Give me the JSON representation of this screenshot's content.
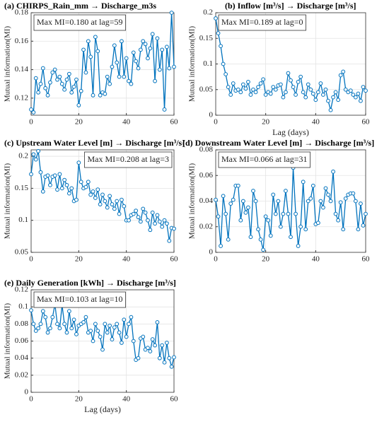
{
  "chart_data": [
    {
      "type": "line",
      "title": "(a) CHIRPS_Rain_mm → Discharge_m3s",
      "ylabel": "Mutual information(MI)",
      "annotation": "Max MI=0.180 at lag=59",
      "annotation_loc": "upper left",
      "x": [
        0,
        1,
        2,
        3,
        4,
        5,
        6,
        7,
        8,
        9,
        10,
        11,
        12,
        13,
        14,
        15,
        16,
        17,
        18,
        19,
        20,
        21,
        22,
        23,
        24,
        25,
        26,
        27,
        28,
        29,
        30,
        31,
        32,
        33,
        34,
        35,
        36,
        37,
        38,
        39,
        40,
        41,
        42,
        43,
        44,
        45,
        46,
        47,
        48,
        49,
        50,
        51,
        52,
        53,
        54,
        55,
        56,
        57,
        58,
        59,
        60
      ],
      "series": [
        {
          "color": "#0072bd",
          "values": [
            0.112,
            0.11,
            0.134,
            0.124,
            0.13,
            0.141,
            0.127,
            0.122,
            0.131,
            0.138,
            0.14,
            0.133,
            0.135,
            0.13,
            0.126,
            0.133,
            0.137,
            0.124,
            0.128,
            0.133,
            0.115,
            0.125,
            0.154,
            0.138,
            0.16,
            0.149,
            0.122,
            0.163,
            0.153,
            0.122,
            0.124,
            0.123,
            0.135,
            0.13,
            0.142,
            0.157,
            0.145,
            0.135,
            0.16,
            0.135,
            0.148,
            0.132,
            0.13,
            0.152,
            0.146,
            0.141,
            0.154,
            0.16,
            0.158,
            0.148,
            0.155,
            0.165,
            0.132,
            0.162,
            0.14,
            0.154,
            0.112,
            0.156,
            0.141,
            0.18,
            0.142
          ]
        }
      ],
      "xlim": [
        0,
        60
      ],
      "xticks": [
        0,
        20,
        40,
        60
      ],
      "ylim": [
        0.108,
        0.18
      ],
      "yticks": [
        0.12,
        0.14,
        0.16,
        0.18
      ],
      "grid": true
    },
    {
      "type": "line",
      "title": "(b) Inflow [m³/s] → Discharge [m³/s]",
      "xlabel": "Lag (days)",
      "ylabel": "Mutual information(MI)",
      "annotation": "Max MI=0.189 at lag=0",
      "annotation_loc": "upper left",
      "x": [
        0,
        1,
        2,
        3,
        4,
        5,
        6,
        7,
        8,
        9,
        10,
        11,
        12,
        13,
        14,
        15,
        16,
        17,
        18,
        19,
        20,
        21,
        22,
        23,
        24,
        25,
        26,
        27,
        28,
        29,
        30,
        31,
        32,
        33,
        34,
        35,
        36,
        37,
        38,
        39,
        40,
        41,
        42,
        43,
        44,
        45,
        46,
        47,
        48,
        49,
        50,
        51,
        52,
        53,
        54,
        55,
        56,
        57,
        58,
        59,
        60
      ],
      "series": [
        {
          "color": "#0072bd",
          "values": [
            0.189,
            0.16,
            0.135,
            0.1,
            0.08,
            0.055,
            0.04,
            0.062,
            0.048,
            0.05,
            0.045,
            0.06,
            0.052,
            0.065,
            0.04,
            0.05,
            0.045,
            0.055,
            0.062,
            0.07,
            0.04,
            0.045,
            0.042,
            0.055,
            0.05,
            0.058,
            0.06,
            0.035,
            0.045,
            0.082,
            0.068,
            0.055,
            0.04,
            0.065,
            0.075,
            0.045,
            0.035,
            0.06,
            0.05,
            0.042,
            0.03,
            0.045,
            0.062,
            0.04,
            0.05,
            0.028,
            0.01,
            0.035,
            0.045,
            0.03,
            0.078,
            0.085,
            0.05,
            0.045,
            0.048,
            0.04,
            0.035,
            0.042,
            0.028,
            0.055,
            0.048
          ]
        }
      ],
      "xlim": [
        0,
        60
      ],
      "xticks": [
        0,
        20,
        40,
        60
      ],
      "ylim": [
        0,
        0.2
      ],
      "yticks": [
        0,
        0.05,
        0.1,
        0.15,
        0.2
      ],
      "grid": true
    },
    {
      "type": "line",
      "title": "(c) Upstream Water Level [m] → Discharge [m³/s]",
      "ylabel": "Mutual information(MI)",
      "annotation": "Max MI=0.208 at lag=3",
      "annotation_loc": "upper right",
      "x": [
        0,
        1,
        2,
        3,
        4,
        5,
        6,
        7,
        8,
        9,
        10,
        11,
        12,
        13,
        14,
        15,
        16,
        17,
        18,
        19,
        20,
        21,
        22,
        23,
        24,
        25,
        26,
        27,
        28,
        29,
        30,
        31,
        32,
        33,
        34,
        35,
        36,
        37,
        38,
        39,
        40,
        41,
        42,
        43,
        44,
        45,
        46,
        47,
        48,
        49,
        50,
        51,
        52,
        53,
        54,
        55,
        56,
        57,
        58,
        59,
        60
      ],
      "series": [
        {
          "color": "#0072bd",
          "values": [
            0.172,
            0.203,
            0.195,
            0.208,
            0.175,
            0.145,
            0.168,
            0.17,
            0.155,
            0.168,
            0.17,
            0.148,
            0.172,
            0.15,
            0.163,
            0.155,
            0.142,
            0.15,
            0.13,
            0.132,
            0.19,
            0.16,
            0.15,
            0.152,
            0.16,
            0.14,
            0.145,
            0.135,
            0.148,
            0.125,
            0.14,
            0.13,
            0.12,
            0.138,
            0.125,
            0.118,
            0.13,
            0.11,
            0.132,
            0.122,
            0.1,
            0.1,
            0.108,
            0.11,
            0.115,
            0.105,
            0.098,
            0.118,
            0.112,
            0.1,
            0.085,
            0.112,
            0.095,
            0.108,
            0.098,
            0.09,
            0.1,
            0.095,
            0.068,
            0.088,
            0.087
          ]
        }
      ],
      "xlim": [
        0,
        60
      ],
      "xticks": [
        0,
        20,
        40,
        60
      ],
      "ylim": [
        0.05,
        0.21
      ],
      "yticks": [
        0.05,
        0.1,
        0.15,
        0.2
      ],
      "grid": true
    },
    {
      "type": "line",
      "title": "(d) Downstream Water Level [m] → Discharge [m³/s]",
      "ylabel": "Mutual information(MI)",
      "annotation": "Max MI=0.066 at lag=31",
      "annotation_loc": "upper left",
      "x": [
        0,
        1,
        2,
        3,
        4,
        5,
        6,
        7,
        8,
        9,
        10,
        11,
        12,
        13,
        14,
        15,
        16,
        17,
        18,
        19,
        20,
        21,
        22,
        23,
        24,
        25,
        26,
        27,
        28,
        29,
        30,
        31,
        32,
        33,
        34,
        35,
        36,
        37,
        38,
        39,
        40,
        41,
        42,
        43,
        44,
        45,
        46,
        47,
        48,
        49,
        50,
        51,
        52,
        53,
        54,
        55,
        56,
        57,
        58,
        59,
        60
      ],
      "series": [
        {
          "color": "#0072bd",
          "values": [
            0.041,
            0.028,
            0.005,
            0.044,
            0.03,
            0.01,
            0.038,
            0.041,
            0.052,
            0.052,
            0.025,
            0.04,
            0.031,
            0.035,
            0.012,
            0.048,
            0.04,
            0.018,
            0.01,
            0.002,
            0.028,
            0.025,
            0.013,
            0.045,
            0.03,
            0.04,
            0.02,
            0.03,
            0.048,
            0.03,
            0.012,
            0.066,
            0.03,
            0.005,
            0.02,
            0.055,
            0.018,
            0.04,
            0.042,
            0.052,
            0.022,
            0.023,
            0.04,
            0.035,
            0.05,
            0.045,
            0.04,
            0.063,
            0.03,
            0.025,
            0.039,
            0.018,
            0.042,
            0.045,
            0.046,
            0.046,
            0.04,
            0.018,
            0.038,
            0.021,
            0.03
          ]
        }
      ],
      "xlim": [
        0,
        60
      ],
      "xticks": [
        0,
        20,
        40,
        60
      ],
      "ylim": [
        0,
        0.08
      ],
      "yticks": [
        0,
        0.02,
        0.04,
        0.06,
        0.08
      ],
      "grid": true
    },
    {
      "type": "line",
      "title": "(e) Daily Generation [kWh] → Discharge [m³/s]",
      "xlabel": "Lag (days)",
      "ylabel": "Mutual information(MI)",
      "annotation": "Max MI=0.103 at lag=10",
      "annotation_loc": "upper left",
      "x": [
        0,
        1,
        2,
        3,
        4,
        5,
        6,
        7,
        8,
        9,
        10,
        11,
        12,
        13,
        14,
        15,
        16,
        17,
        18,
        19,
        20,
        21,
        22,
        23,
        24,
        25,
        26,
        27,
        28,
        29,
        30,
        31,
        32,
        33,
        34,
        35,
        36,
        37,
        38,
        39,
        40,
        41,
        42,
        43,
        44,
        45,
        46,
        47,
        48,
        49,
        50,
        51,
        52,
        53,
        54,
        55,
        56,
        57,
        58,
        59,
        60
      ],
      "series": [
        {
          "color": "#0072bd",
          "values": [
            0.096,
            0.08,
            0.072,
            0.075,
            0.08,
            0.095,
            0.088,
            0.07,
            0.075,
            0.088,
            0.103,
            0.08,
            0.075,
            0.102,
            0.08,
            0.07,
            0.095,
            0.075,
            0.085,
            0.068,
            0.078,
            0.08,
            0.082,
            0.088,
            0.07,
            0.072,
            0.06,
            0.08,
            0.072,
            0.065,
            0.05,
            0.08,
            0.07,
            0.078,
            0.062,
            0.076,
            0.08,
            0.07,
            0.058,
            0.085,
            0.065,
            0.08,
            0.088,
            0.06,
            0.038,
            0.04,
            0.063,
            0.065,
            0.05,
            0.052,
            0.048,
            0.062,
            0.055,
            0.082,
            0.04,
            0.055,
            0.035,
            0.058,
            0.04,
            0.03,
            0.041
          ]
        }
      ],
      "xlim": [
        0,
        60
      ],
      "xticks": [
        0,
        20,
        40,
        60
      ],
      "ylim": [
        0,
        0.12
      ],
      "yticks": [
        0,
        0.02,
        0.04,
        0.06,
        0.08,
        0.1,
        0.12
      ],
      "grid": true
    }
  ]
}
